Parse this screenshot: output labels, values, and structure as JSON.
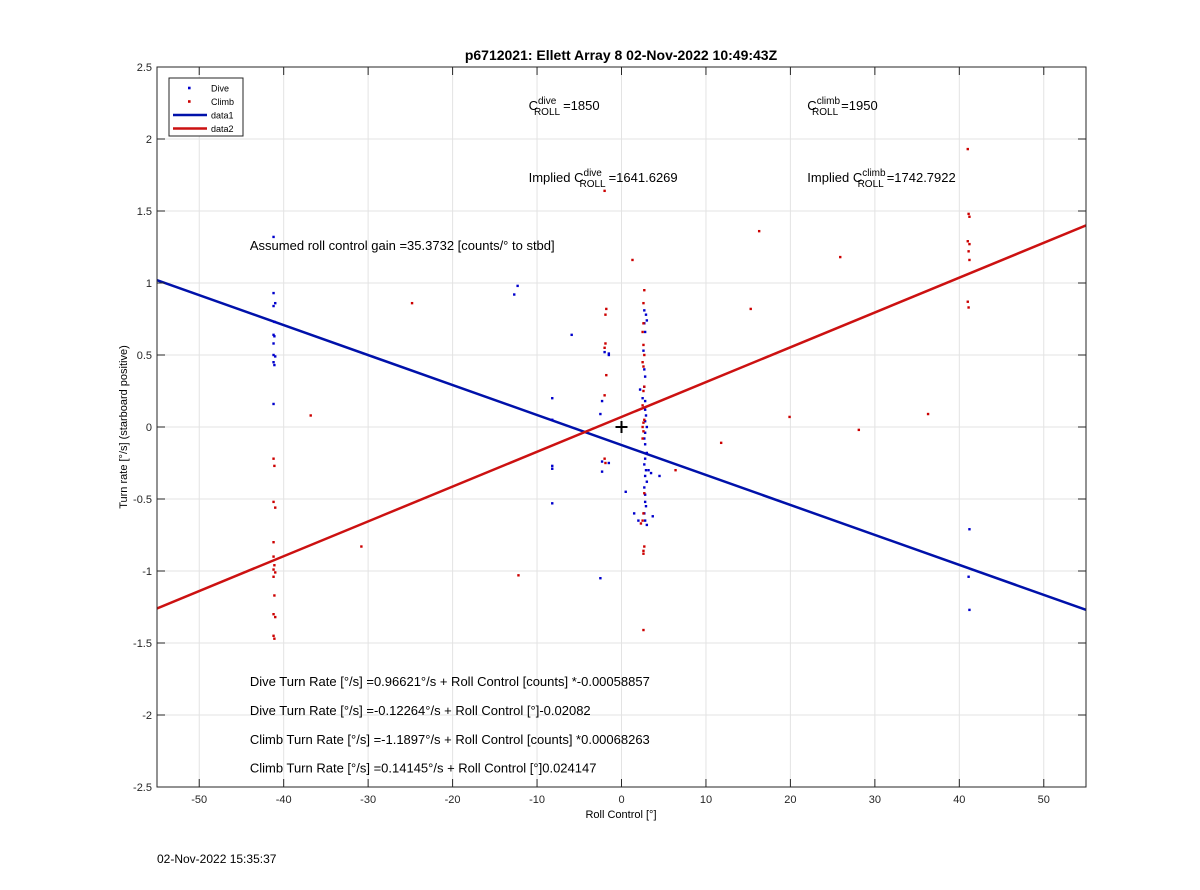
{
  "chart_data": {
    "type": "scatter",
    "title": "p6712021: Ellett Array 8 02-Nov-2022 10:49:43Z",
    "xlabel": "Roll Control [°]",
    "ylabel": "Turn rate [°/s] (starboard positive)",
    "xlim": [
      -55,
      55
    ],
    "ylim": [
      -2.5,
      2.5
    ],
    "xticks": [
      -50,
      -40,
      -30,
      -20,
      -10,
      0,
      10,
      20,
      30,
      40,
      50
    ],
    "yticks": [
      -2.5,
      -2,
      -1.5,
      -1,
      -0.5,
      0,
      0.5,
      1,
      1.5,
      2,
      2.5
    ],
    "grid": true,
    "legend": {
      "placement": "top-left",
      "entries": [
        {
          "name": "Dive",
          "kind": "marker",
          "color": "#0000cc"
        },
        {
          "name": "Climb",
          "kind": "marker",
          "color": "#cc0000"
        },
        {
          "name": "data1",
          "kind": "line",
          "color": "#0011aa"
        },
        {
          "name": "data2",
          "kind": "line",
          "color": "#cc1111"
        }
      ]
    },
    "series": [
      {
        "name": "Dive",
        "color": "#0000cc",
        "points": [
          [
            -41.2,
            1.32
          ],
          [
            -41.2,
            0.93
          ],
          [
            -41.0,
            0.86
          ],
          [
            -41.2,
            0.84
          ],
          [
            -41.1,
            0.73
          ],
          [
            -41.2,
            0.64
          ],
          [
            -41.1,
            0.63
          ],
          [
            -41.2,
            0.58
          ],
          [
            -41.2,
            0.5
          ],
          [
            -41.0,
            0.49
          ],
          [
            -41.2,
            0.45
          ],
          [
            -41.1,
            0.43
          ],
          [
            -41.2,
            0.16
          ],
          [
            -12.7,
            0.92
          ],
          [
            -12.3,
            0.98
          ],
          [
            -5.9,
            0.64
          ],
          [
            -8.2,
            0.2
          ],
          [
            -8.2,
            0.05
          ],
          [
            -8.2,
            -0.27
          ],
          [
            -8.2,
            -0.29
          ],
          [
            -8.2,
            -0.53
          ],
          [
            -2.3,
            0.18
          ],
          [
            -2.5,
            0.09
          ],
          [
            -2.3,
            -0.24
          ],
          [
            -2.3,
            -0.31
          ],
          [
            -2.5,
            -1.05
          ],
          [
            -1.5,
            0.51
          ],
          [
            -1.5,
            0.5
          ],
          [
            -2.0,
            0.52
          ],
          [
            -1.5,
            -0.25
          ],
          [
            1.5,
            -0.6
          ],
          [
            0.5,
            -0.45
          ],
          [
            2.0,
            -0.65
          ],
          [
            2.2,
            0.26
          ],
          [
            2.5,
            0.2
          ],
          [
            2.7,
            0.81
          ],
          [
            2.9,
            0.78
          ],
          [
            3.0,
            0.74
          ],
          [
            2.7,
            0.72
          ],
          [
            2.8,
            0.66
          ],
          [
            2.6,
            0.53
          ],
          [
            2.7,
            0.4
          ],
          [
            2.8,
            0.35
          ],
          [
            2.7,
            0.28
          ],
          [
            2.8,
            0.18
          ],
          [
            2.8,
            0.12
          ],
          [
            2.9,
            0.08
          ],
          [
            2.8,
            0.04
          ],
          [
            3.0,
            0.0
          ],
          [
            2.8,
            -0.04
          ],
          [
            2.7,
            -0.08
          ],
          [
            2.8,
            -0.12
          ],
          [
            3.0,
            -0.18
          ],
          [
            2.8,
            -0.22
          ],
          [
            2.7,
            -0.26
          ],
          [
            2.9,
            -0.3
          ],
          [
            2.8,
            -0.34
          ],
          [
            3.0,
            -0.38
          ],
          [
            2.7,
            -0.42
          ],
          [
            2.8,
            -0.47
          ],
          [
            2.9,
            -0.55
          ],
          [
            2.7,
            -0.6
          ],
          [
            2.8,
            -0.65
          ],
          [
            3.0,
            -0.68
          ],
          [
            2.8,
            -0.52
          ],
          [
            3.5,
            -0.32
          ],
          [
            3.7,
            -0.62
          ],
          [
            4.5,
            -0.34
          ],
          [
            3.2,
            -0.3
          ],
          [
            41.2,
            -0.71
          ],
          [
            41.1,
            -1.04
          ],
          [
            41.2,
            -1.27
          ]
        ]
      },
      {
        "name": "Climb",
        "color": "#cc0000",
        "points": [
          [
            -41.2,
            -0.22
          ],
          [
            -41.1,
            -0.27
          ],
          [
            -41.2,
            -0.52
          ],
          [
            -41.0,
            -0.56
          ],
          [
            -41.2,
            -0.8
          ],
          [
            -41.2,
            -0.9
          ],
          [
            -41.1,
            -0.96
          ],
          [
            -41.2,
            -0.99
          ],
          [
            -41.0,
            -1.01
          ],
          [
            -41.2,
            -1.04
          ],
          [
            -41.1,
            -1.17
          ],
          [
            -41.2,
            -1.3
          ],
          [
            -41.0,
            -1.32
          ],
          [
            -41.2,
            -1.45
          ],
          [
            -41.1,
            -1.47
          ],
          [
            -36.8,
            0.08
          ],
          [
            -30.8,
            -0.83
          ],
          [
            -24.8,
            0.86
          ],
          [
            -12.2,
            -1.03
          ],
          [
            -2.0,
            1.64
          ],
          [
            -1.8,
            0.82
          ],
          [
            -1.9,
            0.78
          ],
          [
            -1.9,
            0.58
          ],
          [
            -2.0,
            0.55
          ],
          [
            -1.8,
            0.36
          ],
          [
            -2.0,
            0.22
          ],
          [
            -1.9,
            -0.25
          ],
          [
            -2.0,
            -0.22
          ],
          [
            1.3,
            1.16
          ],
          [
            2.7,
            0.95
          ],
          [
            2.6,
            0.86
          ],
          [
            2.6,
            0.72
          ],
          [
            2.5,
            0.66
          ],
          [
            2.6,
            0.57
          ],
          [
            2.7,
            0.5
          ],
          [
            2.5,
            0.45
          ],
          [
            2.6,
            0.42
          ],
          [
            2.7,
            0.28
          ],
          [
            2.6,
            0.25
          ],
          [
            2.5,
            0.15
          ],
          [
            2.7,
            0.05
          ],
          [
            2.6,
            0.03
          ],
          [
            2.5,
            0.0
          ],
          [
            2.6,
            -0.03
          ],
          [
            2.5,
            -0.08
          ],
          [
            2.7,
            -0.46
          ],
          [
            2.6,
            -0.6
          ],
          [
            2.5,
            -0.65
          ],
          [
            2.7,
            -0.83
          ],
          [
            2.6,
            -0.86
          ],
          [
            2.6,
            -0.88
          ],
          [
            2.6,
            -1.41
          ],
          [
            2.3,
            -0.67
          ],
          [
            6.4,
            -0.3
          ],
          [
            11.8,
            -0.11
          ],
          [
            15.3,
            0.82
          ],
          [
            16.3,
            1.36
          ],
          [
            19.9,
            0.07
          ],
          [
            25.9,
            1.18
          ],
          [
            28.1,
            -0.02
          ],
          [
            36.3,
            0.09
          ],
          [
            41.0,
            1.93
          ],
          [
            41.1,
            1.48
          ],
          [
            41.2,
            1.46
          ],
          [
            41.0,
            1.29
          ],
          [
            41.2,
            1.27
          ],
          [
            41.1,
            1.22
          ],
          [
            41.2,
            1.16
          ],
          [
            41.0,
            0.87
          ],
          [
            41.1,
            0.83
          ]
        ]
      },
      {
        "name": "data1",
        "kind": "line",
        "color": "#0011aa",
        "x": [
          -55,
          55
        ],
        "y": [
          1.02,
          -1.27
        ]
      },
      {
        "name": "data2",
        "kind": "line",
        "color": "#cc1111",
        "x": [
          -55,
          55
        ],
        "y": [
          -1.26,
          1.4
        ]
      }
    ],
    "center_marker": [
      0,
      0
    ],
    "annotations": {
      "c_dive": {
        "base": "C",
        "sup": "dive",
        "sub": "ROLL",
        "value": "=1850",
        "x": -11,
        "y": 2.2
      },
      "c_climb": {
        "base": "C",
        "sup": "climb",
        "sub": "ROLL",
        "value": "=1950",
        "x": 22,
        "y": 2.2
      },
      "implied_dive": {
        "prefix": "Implied C",
        "sup": "dive",
        "sub": "ROLL",
        "value": "=1641.6269",
        "x": -11,
        "y": 1.7
      },
      "implied_climb": {
        "prefix": "Implied C",
        "sup": "climb",
        "sub": "ROLL",
        "value": "=1742.7922",
        "x": 22,
        "y": 1.7
      },
      "gain": {
        "text": "Assumed roll control gain =35.3732 [counts/° to stbd]",
        "x": -44,
        "y": 1.23
      },
      "eq1": {
        "text": "Dive Turn Rate [°/s] =0.96621°/s + Roll Control [counts] *-0.00058857",
        "x": -44,
        "y": -1.8
      },
      "eq2": {
        "text": "Dive Turn Rate [°/s] =-0.12264°/s + Roll Control [°]-0.02082",
        "x": -44,
        "y": -2.0
      },
      "eq3": {
        "text": "Climb Turn Rate [°/s] =-1.1897°/s + Roll Control [counts] *0.00068263",
        "x": -44,
        "y": -2.2
      },
      "eq4": {
        "text": "Climb Turn Rate [°/s] =0.14145°/s + Roll Control [°]0.024147",
        "x": -44,
        "y": -2.4
      }
    }
  },
  "footer_timestamp": "02-Nov-2022 15:35:37"
}
